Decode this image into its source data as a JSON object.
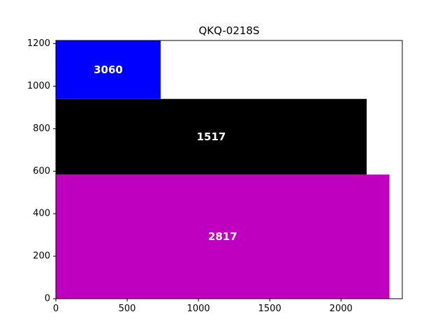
{
  "chart_data": {
    "type": "bar",
    "orientation": "horizontal",
    "stacking": "variable-width",
    "title": "QKQ-0218S",
    "xlabel": "",
    "ylabel": "",
    "xlim": [
      0,
      2430
    ],
    "ylim": [
      0,
      1215
    ],
    "x_ticks": [
      0,
      500,
      1000,
      1500,
      2000
    ],
    "y_ticks": [
      0,
      200,
      400,
      600,
      800,
      1000,
      1200
    ],
    "bars": [
      {
        "label": "2817",
        "value": 2340,
        "y_start": 0,
        "y_end": 584,
        "color": "#bf00bf"
      },
      {
        "label": "1517",
        "value": 2180,
        "y_start": 584,
        "y_end": 940,
        "color": "#000000"
      },
      {
        "label": "3060",
        "value": 735,
        "y_start": 940,
        "y_end": 1215,
        "color": "#0000ff"
      }
    ],
    "grid": false,
    "legend": "none"
  }
}
